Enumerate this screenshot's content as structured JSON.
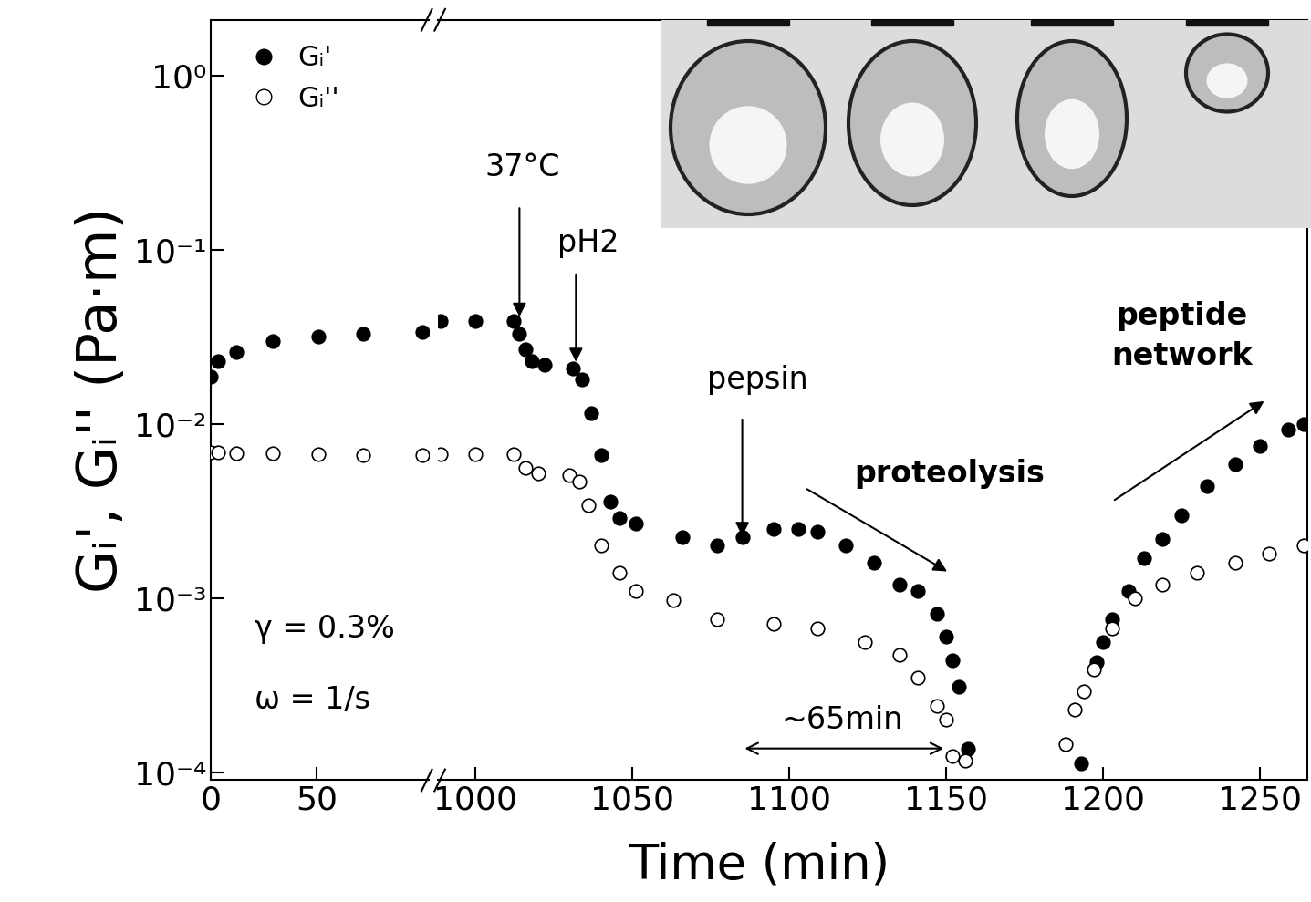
{
  "chart_data": [
    {
      "type": "scatter",
      "y_label": "Gᵢ', Gᵢ'' (Pa·m)",
      "log": "y",
      "legend": "upper left",
      "xlim": [
        0,
        103
      ],
      "xticks": [
        0,
        50
      ],
      "ylim": [
        9e-05,
        2.1
      ],
      "yticks": [
        {
          "value": 0.0001,
          "label": "10⁻⁴"
        },
        {
          "value": 0.001,
          "label": "10⁻³"
        },
        {
          "value": 0.01,
          "label": "10⁻²"
        },
        {
          "value": 0.1,
          "label": "10⁻¹"
        },
        {
          "value": 1,
          "label": "10⁰"
        }
      ],
      "series": [
        {
          "name": "Gᵢ'",
          "color": "#000000",
          "marker": "filled circle",
          "x": [
            0,
            3.4,
            12,
            29,
            51,
            72,
            100
          ],
          "values": [
            0.0187,
            0.023,
            0.026,
            0.03,
            0.032,
            0.033,
            0.034
          ]
        },
        {
          "name": "Gᵢ''",
          "color": "#000000",
          "marker": "open circle",
          "x": [
            0,
            3.4,
            12,
            29,
            51,
            72,
            100
          ],
          "values": [
            0.0069,
            0.0069,
            0.0068,
            0.0068,
            0.0067,
            0.0066,
            0.0066
          ]
        }
      ],
      "annotations": [
        {
          "text": "γ = 0.3%",
          "x": 20.7,
          "y": 0.00067
        },
        {
          "text": "ω = 1/s",
          "x": 20.7,
          "y": 0.00026
        }
      ]
    },
    {
      "type": "scatter",
      "x_label": "Time (min)",
      "log": "y",
      "xlim": [
        988,
        1265
      ],
      "xticks": [
        1000,
        1050,
        1100,
        1150,
        1200,
        1250
      ],
      "ylim": [
        9e-05,
        2.1
      ],
      "series": [
        {
          "name": "Gᵢ'",
          "color": "#000000",
          "marker": "filled circle",
          "x": [
            989,
            1000,
            1012,
            1014,
            1016,
            1018,
            1022,
            1031,
            1034,
            1037,
            1040,
            1043,
            1046,
            1051,
            1066,
            1077,
            1085,
            1095,
            1103,
            1109,
            1118,
            1127,
            1135,
            1141,
            1147,
            1150,
            1152,
            1154,
            1157,
            1193,
            1198,
            1200,
            1203,
            1208,
            1213,
            1219,
            1225,
            1233,
            1242,
            1250,
            1259,
            1264
          ],
          "values": [
            0.039,
            0.039,
            0.039,
            0.033,
            0.027,
            0.023,
            0.022,
            0.021,
            0.018,
            0.0115,
            0.0066,
            0.0036,
            0.0029,
            0.0027,
            0.00225,
            0.002,
            0.00225,
            0.0025,
            0.0025,
            0.0024,
            0.002,
            0.0016,
            0.0012,
            0.0011,
            0.00081,
            0.0006,
            0.00044,
            0.00031,
            0.000137,
            0.000113,
            0.00043,
            0.00056,
            0.00076,
            0.0011,
            0.0017,
            0.0022,
            0.003,
            0.0044,
            0.0059,
            0.0075,
            0.0093,
            0.01
          ]
        },
        {
          "name": "Gᵢ''",
          "color": "#000000",
          "marker": "open circle",
          "x": [
            989,
            1000,
            1012,
            1016,
            1020,
            1030,
            1033,
            1036,
            1040,
            1046,
            1051,
            1063,
            1077,
            1095,
            1109,
            1124,
            1135,
            1141,
            1147,
            1150,
            1152,
            1156,
            1188,
            1191,
            1194,
            1197,
            1203,
            1210,
            1219,
            1230,
            1242,
            1253,
            1264
          ],
          "values": [
            0.0067,
            0.0067,
            0.0067,
            0.0056,
            0.0052,
            0.0051,
            0.0047,
            0.0034,
            0.002,
            0.0014,
            0.0011,
            0.00097,
            0.00076,
            0.00071,
            0.00067,
            0.00056,
            0.00047,
            0.00035,
            0.00024,
            0.0002,
            0.000124,
            0.000117,
            0.000145,
            0.00023,
            0.00029,
            0.00039,
            0.00067,
            0.001,
            0.0012,
            0.0014,
            0.0016,
            0.0018,
            0.002
          ]
        }
      ],
      "annotations": [
        {
          "text": "37°C",
          "x": 1015,
          "y": 0.3,
          "arrow": [
            [
              1014,
              0.18
            ],
            [
              1014,
              0.04
            ]
          ]
        },
        {
          "text": "pH2",
          "x": 1036,
          "y": 0.11,
          "arrow": [
            [
              1032,
              0.075
            ],
            [
              1032,
              0.022
            ]
          ]
        },
        {
          "text": "pepsin",
          "x": 1090,
          "y": 0.018,
          "arrow": [
            [
              1085,
              0.011
            ],
            [
              1085,
              0.0022
            ]
          ]
        },
        {
          "text": "proteolysis",
          "x": 1151,
          "y": 0.0052,
          "bold": true,
          "arrow": [
            [
              1105,
              0.0043
            ],
            [
              1151,
              0.0014
            ]
          ]
        },
        {
          "text": "peptide\nnetwork",
          "x": 1225,
          "y": 0.032,
          "bold": true,
          "arrow": [
            [
              1203,
              0.0036
            ],
            [
              1252,
              0.0138
            ]
          ]
        },
        {
          "text": "~65min",
          "x": 1117,
          "y": 0.0002,
          "line_style": "<->",
          "arrow": [
            [
              1085,
              0.000137
            ],
            [
              1150,
              0.000137
            ]
          ]
        }
      ]
    }
  ]
}
